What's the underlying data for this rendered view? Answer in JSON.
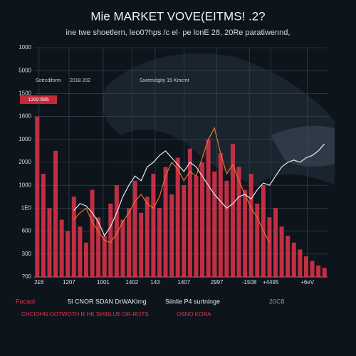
{
  "chart_data": {
    "type": "bar",
    "title": "Mie MARKET VOVE(EITMS! .2?",
    "subtitle": "ine twe shoetlern, leo0?hps /c el· pe lonE 28, 20Re paratiwennd,",
    "annotations": [
      "Sotrcdiform",
      "2018 202",
      "Sxetmidgity 15 Kmcmt",
      "1200:695"
    ],
    "footer": [
      "Focaol",
      "5I CNOR SDAN DrWAKimg",
      "Siinlie P4 surtninge",
      "20C8",
      "CHCIOHN OOTWOTH R HK SHINLUE OR-ROTS",
      "OSNO KORA"
    ],
    "xlim": [
      0,
      48
    ],
    "xticks": [
      {
        "value": 0.8,
        "label": "2£6"
      },
      {
        "value": 5.7,
        "label": "1207"
      },
      {
        "value": 11.3,
        "label": "1001"
      },
      {
        "value": 16.0,
        "label": "1402"
      },
      {
        "value": 19.8,
        "label": "143"
      },
      {
        "value": 24.5,
        "label": "1407"
      },
      {
        "value": 29.9,
        "label": "2997"
      },
      {
        "value": 35.2,
        "label": "-1508"
      },
      {
        "value": 38.7,
        "label": "+4495"
      },
      {
        "value": 44.7,
        "label": "+6eV"
      }
    ],
    "ylim": [
      0,
      10
    ],
    "yticks": [
      {
        "value": 0,
        "label": "?00"
      },
      {
        "value": 1,
        "label": "300"
      },
      {
        "value": 2,
        "label": "600"
      },
      {
        "value": 3,
        "label": "1E0"
      },
      {
        "value": 4,
        "label": "1000"
      },
      {
        "value": 5,
        "label": "2000"
      },
      {
        "value": 6,
        "label": "1000"
      },
      {
        "value": 7,
        "label": "1600"
      },
      {
        "value": 8,
        "label": "1500"
      },
      {
        "value": 9,
        "label": "5000"
      },
      {
        "value": 10,
        "label": "1000"
      }
    ],
    "grid": true,
    "bars": {
      "color": "#e0334a",
      "values": [
        7.0,
        4.5,
        3.0,
        5.5,
        2.5,
        2.0,
        3.5,
        2.2,
        1.5,
        3.8,
        2.6,
        1.8,
        3.2,
        4.0,
        2.5,
        3.0,
        4.2,
        2.8,
        3.5,
        4.5,
        3.0,
        4.8,
        3.6,
        5.2,
        4.0,
        5.6,
        4.4,
        5.0,
        6.0,
        4.6,
        5.4,
        4.2,
        5.8,
        4.8,
        3.8,
        4.5,
        3.2,
        4.0,
        2.6,
        3.0,
        2.2,
        1.8,
        1.5,
        1.2,
        0.9,
        0.7,
        0.5,
        0.4
      ]
    },
    "lines": [
      {
        "color": "#e8742a",
        "values": [
          null,
          null,
          null,
          null,
          null,
          null,
          2.5,
          2.8,
          3.0,
          2.4,
          2.0,
          1.6,
          1.5,
          1.9,
          2.4,
          2.8,
          3.3,
          3.6,
          3.2,
          3.0,
          3.5,
          4.4,
          5.0,
          4.7,
          4.2,
          4.6,
          4.4,
          5.2,
          6.0,
          6.5,
          5.4,
          4.5,
          4.9,
          4.2,
          3.6,
          3.0,
          2.6,
          2.0,
          1.5,
          null,
          null,
          null,
          null,
          null,
          null,
          null,
          null,
          null
        ]
      },
      {
        "color": "#e6ebef",
        "values": [
          null,
          null,
          null,
          null,
          null,
          null,
          2.9,
          3.2,
          3.1,
          2.8,
          2.4,
          1.8,
          2.2,
          2.8,
          3.5,
          4.0,
          4.4,
          4.2,
          4.8,
          5.0,
          5.3,
          5.5,
          5.2,
          4.9,
          4.6,
          5.0,
          4.8,
          4.4,
          4.0,
          3.6,
          3.3,
          3.0,
          3.2,
          3.5,
          3.6,
          3.4,
          3.8,
          4.1,
          4.0,
          4.4,
          4.8,
          5.0,
          5.1,
          5.0,
          5.2,
          5.3,
          5.5,
          5.8
        ]
      }
    ]
  }
}
